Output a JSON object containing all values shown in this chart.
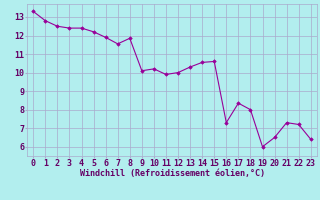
{
  "x": [
    0,
    1,
    2,
    3,
    4,
    5,
    6,
    7,
    8,
    9,
    10,
    11,
    12,
    13,
    14,
    15,
    16,
    17,
    18,
    19,
    20,
    21,
    22,
    23
  ],
  "y": [
    13.3,
    12.8,
    12.5,
    12.4,
    12.4,
    12.2,
    11.9,
    11.55,
    11.85,
    10.1,
    10.2,
    9.9,
    10.0,
    10.3,
    10.55,
    10.6,
    7.3,
    8.35,
    8.0,
    6.0,
    6.5,
    7.3,
    7.2,
    6.4
  ],
  "line_color": "#990099",
  "marker": "D",
  "marker_size": 1.8,
  "bg_color": "#b2eeee",
  "grid_color": "#aaaacc",
  "xlabel": "Windchill (Refroidissement éolien,°C)",
  "ylabel_ticks": [
    6,
    7,
    8,
    9,
    10,
    11,
    12,
    13
  ],
  "xlim": [
    -0.5,
    23.5
  ],
  "ylim": [
    5.5,
    13.7
  ],
  "xlabel_fontsize": 6.0,
  "tick_fontsize": 6.0,
  "label_color": "#660066"
}
